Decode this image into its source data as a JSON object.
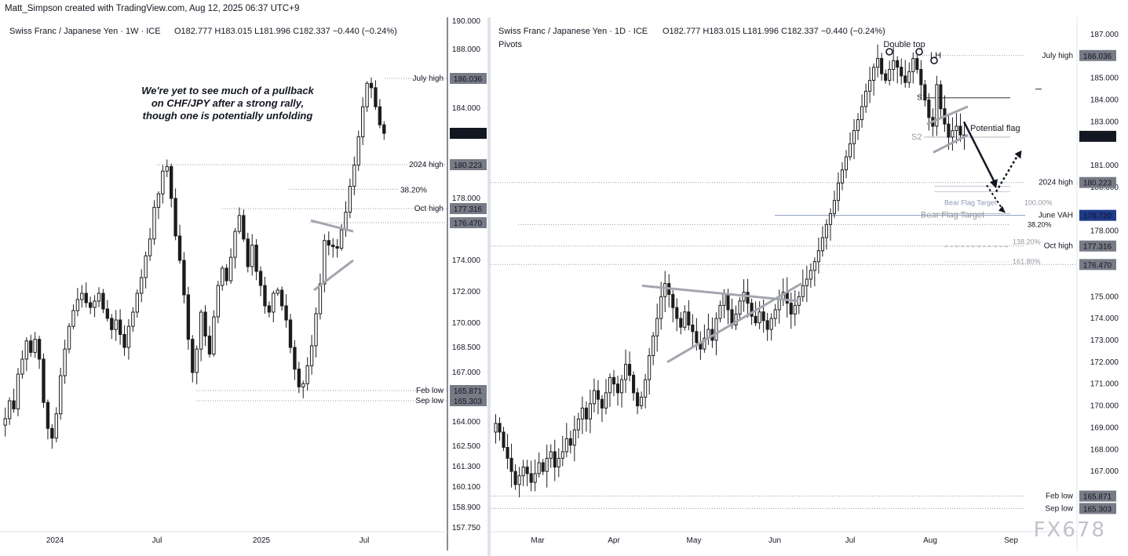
{
  "header": {
    "text": "Matt_Simpson created with TradingView.com, Aug 12, 2025 06:37 UTC+9"
  },
  "watermark": "FX678",
  "chart_data": [
    {
      "type": "candlestick",
      "title": "Swiss Franc / Japanese Yen · 1W · ICE",
      "ohlc_label": "O182.777  H183.015  L181.996  C182.337  −0.440 (−0.24%)",
      "annotation": [
        "We're yet to see much of a pullback",
        "on CHF/JPY after a strong rally,",
        "though one is potentially unfolding"
      ],
      "y_ticks": [
        "190.000",
        "188.000",
        "186.036",
        "184.000",
        "182.337",
        "180.223",
        "178.000",
        "177.316",
        "176.470",
        "174.000",
        "172.000",
        "170.000",
        "168.500",
        "167.000",
        "165.871",
        "165.303",
        "164.000",
        "162.500",
        "161.300",
        "160.100",
        "158.900",
        "157.750"
      ],
      "x_ticks": [
        "2024",
        "Jul",
        "2025",
        "Jul"
      ],
      "price_labels": [
        {
          "value": 186.036,
          "text": "186.036",
          "name": "July high"
        },
        {
          "value": 182.337,
          "text": "182.337",
          "name": "",
          "current": true
        },
        {
          "value": 180.223,
          "text": "180.223",
          "name": "2024 high"
        },
        {
          "value": 177.316,
          "text": "177.316",
          "name": "Oct high"
        },
        {
          "value": 176.47,
          "text": "176.470",
          "name": ""
        },
        {
          "value": 165.871,
          "text": "165.871",
          "name": "Feb low"
        },
        {
          "value": 165.303,
          "text": "165.303",
          "name": "Sep low"
        }
      ],
      "fib_label": "38.20%",
      "series": [
        {
          "name": "CHF/JPY weekly close",
          "values": [
            164.2,
            165.3,
            164.8,
            166.9,
            167.8,
            168.9,
            168.2,
            169.0,
            167.8,
            165.2,
            163.6,
            163.0,
            164.5,
            166.8,
            168.4,
            169.8,
            170.8,
            171.5,
            171.9,
            171.3,
            171.0,
            171.4,
            171.9,
            170.9,
            170.3,
            169.6,
            170.2,
            169.3,
            168.5,
            169.8,
            170.7,
            171.9,
            172.9,
            174.3,
            175.4,
            177.4,
            178.3,
            179.8,
            180.1,
            178.0,
            175.6,
            174.0,
            171.8,
            169.0,
            167.0,
            168.4,
            170.7,
            169.2,
            168.1,
            170.4,
            172.4,
            173.5,
            172.7,
            174.2,
            175.9,
            176.9,
            175.4,
            173.6,
            175.0,
            173.3,
            172.4,
            171.1,
            170.7,
            171.9,
            172.1,
            171.1,
            170.2,
            168.5,
            167.2,
            166.1,
            166.3,
            167.4,
            168.6,
            170.6,
            172.5,
            175.3,
            175.0,
            174.9,
            174.8,
            176.0,
            177.1,
            178.8,
            180.2,
            182.1,
            184.1,
            185.7,
            185.4,
            184.1,
            182.9,
            182.337
          ]
        }
      ]
    },
    {
      "type": "candlestick",
      "title": "Swiss Franc / Japanese Yen · 1D · ICE",
      "ohlc_label": "O182.777  H183.015  L181.996  C182.337  −0.440 (−0.24%)",
      "subtitle": "Pivots",
      "annotations": [
        "Double top",
        "LH",
        "Potential flag",
        "P",
        "S1",
        "S2",
        "Bear Flag Target",
        "100.00%",
        "38.20%",
        "138.20%",
        "161.80%",
        "June VAH"
      ],
      "y_ticks": [
        "187.000",
        "186.036",
        "185.000",
        "184.000",
        "183.000",
        "182.337",
        "181.000",
        "180.223",
        "180.000",
        "178.720",
        "178.000",
        "177.316",
        "176.470",
        "175.000",
        "174.000",
        "173.000",
        "172.000",
        "171.000",
        "170.000",
        "169.000",
        "168.000",
        "167.000",
        "165.871",
        "165.303"
      ],
      "x_ticks": [
        "Mar",
        "Apr",
        "May",
        "Jun",
        "Jul",
        "Aug",
        "Sep"
      ],
      "price_labels": [
        {
          "value": 186.036,
          "text": "186.036",
          "name": "July high"
        },
        {
          "value": 182.337,
          "text": "182.337",
          "name": "",
          "current": true
        },
        {
          "value": 180.223,
          "text": "180.223",
          "name": "2024 high"
        },
        {
          "value": 178.72,
          "text": "178.720",
          "name": "June VAH",
          "blue": true
        },
        {
          "value": 177.316,
          "text": "177.316",
          "name": "Oct high"
        },
        {
          "value": 176.47,
          "text": "176.470",
          "name": ""
        },
        {
          "value": 165.871,
          "text": "165.871",
          "name": "Feb low"
        },
        {
          "value": 165.303,
          "text": "165.303",
          "name": "Sep low"
        }
      ],
      "series": [
        {
          "name": "CHF/JPY daily close",
          "values": [
            169.2,
            168.8,
            168.1,
            167.6,
            167.0,
            166.4,
            166.8,
            167.2,
            166.9,
            166.5,
            166.9,
            167.4,
            167.0,
            167.6,
            167.9,
            167.2,
            167.6,
            167.9,
            168.5,
            168.2,
            168.9,
            169.4,
            169.9,
            169.4,
            170.1,
            170.7,
            170.3,
            169.9,
            170.6,
            171.3,
            171.0,
            170.6,
            171.2,
            171.9,
            171.4,
            170.6,
            170.0,
            170.4,
            171.2,
            172.3,
            173.2,
            174.0,
            175.0,
            175.6,
            175.1,
            174.5,
            174.0,
            173.6,
            174.3,
            173.7,
            173.4,
            172.9,
            172.6,
            173.1,
            173.5,
            173.0,
            174.0,
            174.6,
            175.1,
            174.4,
            173.7,
            174.2,
            174.8,
            175.2,
            174.7,
            174.1,
            173.8,
            174.3,
            173.9,
            173.5,
            174.0,
            174.4,
            174.9,
            175.2,
            174.7,
            174.2,
            174.6,
            175.0,
            175.5,
            175.8,
            176.2,
            176.6,
            177.1,
            177.7,
            178.3,
            178.8,
            179.4,
            180.2,
            180.8,
            181.4,
            182.0,
            182.6,
            183.1,
            183.7,
            184.4,
            184.9,
            185.5,
            185.9,
            185.2,
            184.9,
            185.4,
            185.8,
            185.5,
            185.1,
            184.8,
            185.3,
            185.9,
            185.4,
            184.7,
            184.0,
            183.2,
            182.8,
            184.7,
            183.6,
            182.9,
            182.3,
            182.6,
            182.8,
            182.4,
            182.337
          ]
        }
      ]
    }
  ]
}
